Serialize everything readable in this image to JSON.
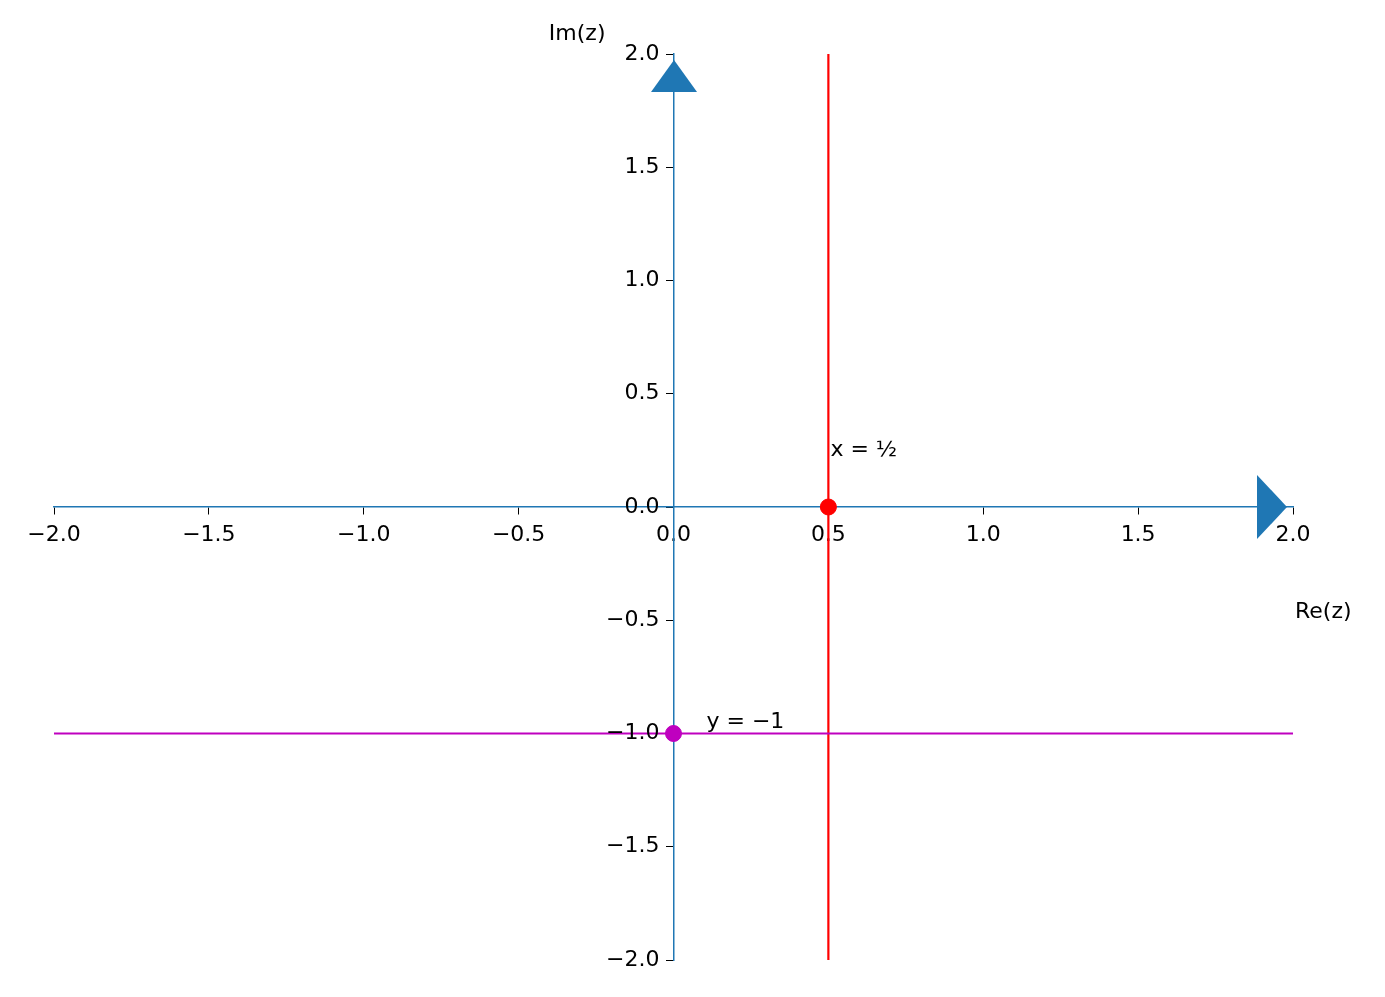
{
  "chart_data": {
    "type": "scatter",
    "xlabel": "Re(z)",
    "ylabel": "Im(z)",
    "xlim": [
      -2,
      2
    ],
    "ylim": [
      -2,
      2
    ],
    "xticks": [
      {
        "value": -2,
        "label": "−2.0"
      },
      {
        "value": -1.5,
        "label": "−1.5"
      },
      {
        "value": -1,
        "label": "−1.0"
      },
      {
        "value": -0.5,
        "label": "−0.5"
      },
      {
        "value": 0,
        "label": "0.0"
      },
      {
        "value": 0.5,
        "label": "0.5"
      },
      {
        "value": 1,
        "label": "1.0"
      },
      {
        "value": 1.5,
        "label": "1.5"
      },
      {
        "value": 2,
        "label": "2.0"
      }
    ],
    "yticks": [
      {
        "value": -2,
        "label": "−2.0"
      },
      {
        "value": -1.5,
        "label": "−1.5"
      },
      {
        "value": -1,
        "label": "−1.0"
      },
      {
        "value": -0.5,
        "label": "−0.5"
      },
      {
        "value": 0,
        "label": "0.0"
      },
      {
        "value": 0.5,
        "label": "0.5"
      },
      {
        "value": 1,
        "label": "1.0"
      },
      {
        "value": 1.5,
        "label": "1.5"
      },
      {
        "value": 2,
        "label": "2.0"
      }
    ],
    "series": [
      {
        "color": "#ff0000",
        "x": [
          0.5
        ],
        "values": [
          0
        ]
      },
      {
        "color": "#bf00bf",
        "x": [
          0
        ],
        "values": [
          -1
        ]
      }
    ],
    "ref_lines": [
      {
        "axis": "x",
        "value": 0.5,
        "color": "#ff0000",
        "line_style": "solid"
      },
      {
        "axis": "y",
        "value": -1,
        "color": "#bf00bf",
        "line_style": "solid"
      }
    ],
    "annotations": [
      {
        "text": "x = ½",
        "x": 0.5,
        "y": 0.2
      },
      {
        "text": "y = −1",
        "x": 0.1,
        "y": -1
      }
    ],
    "marker": "circle",
    "grid": false,
    "legend": false
  }
}
